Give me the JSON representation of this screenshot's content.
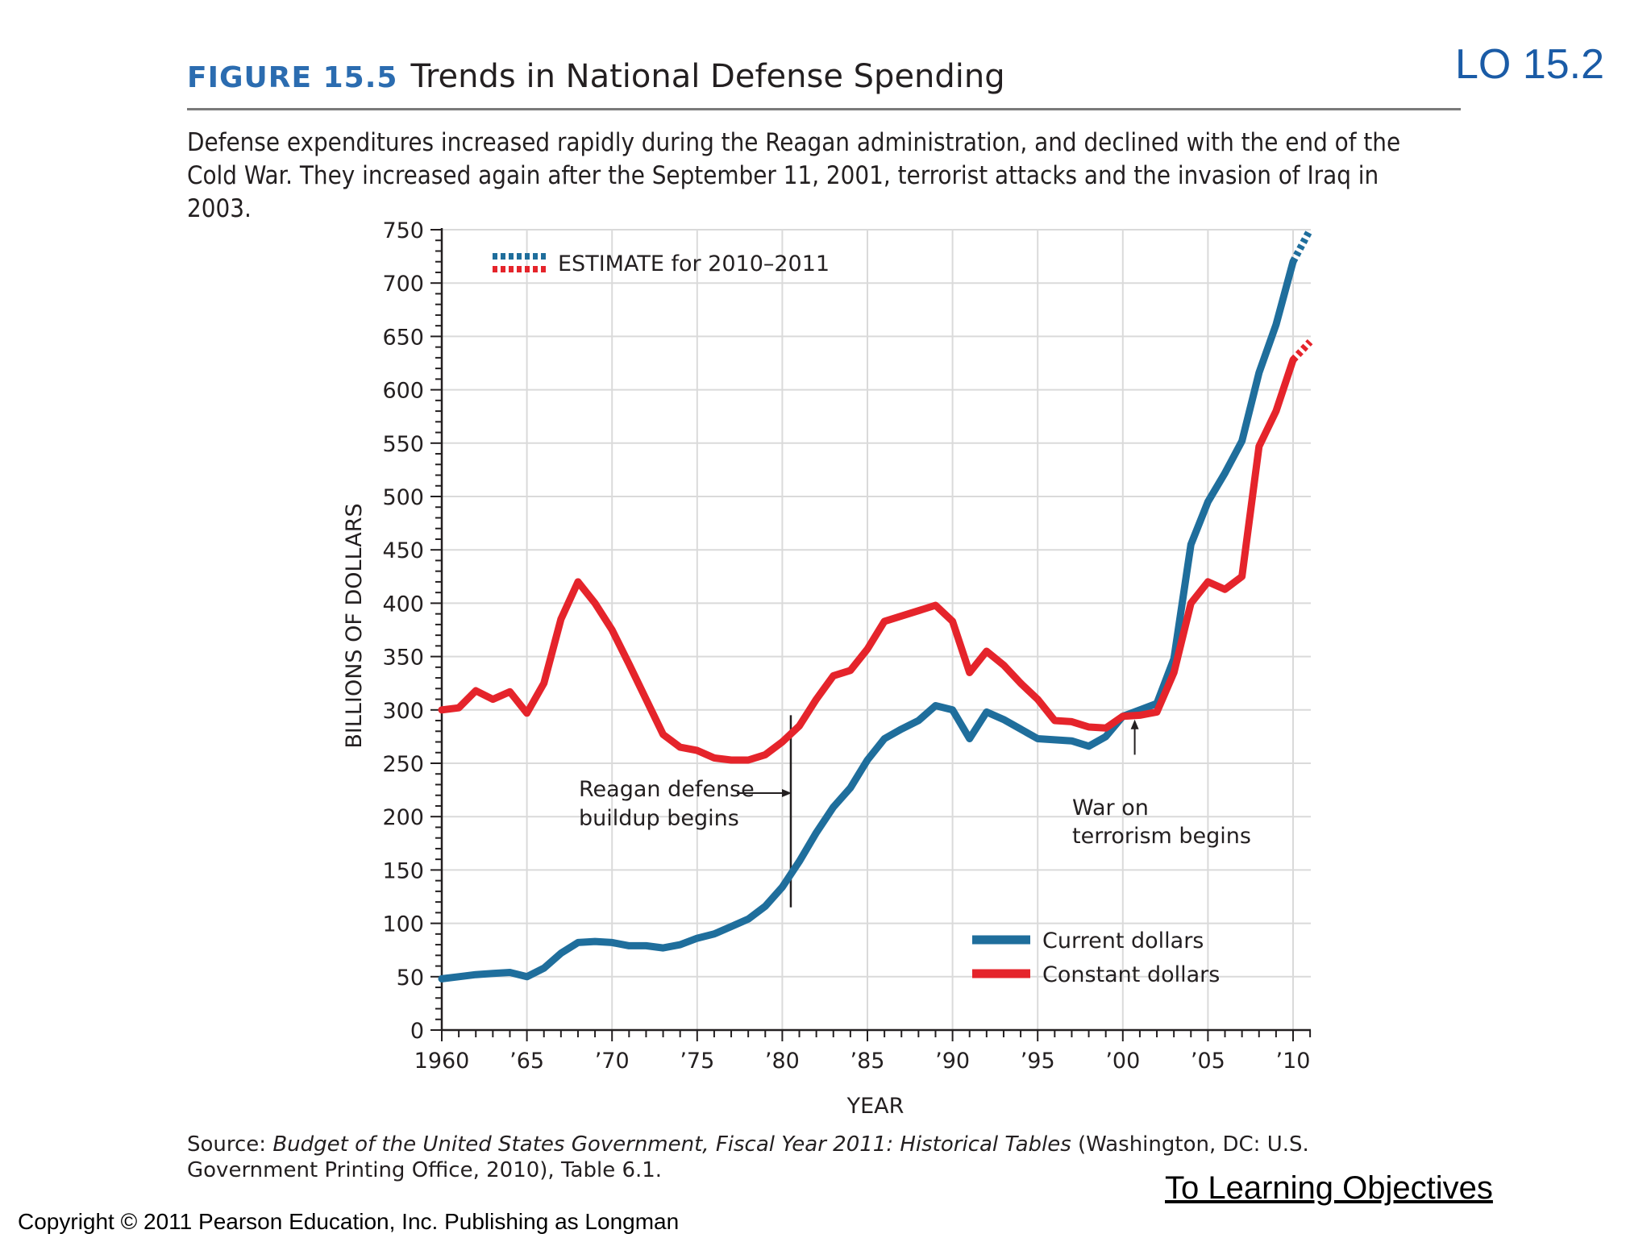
{
  "lo_tag": "LO 15.2",
  "figure": {
    "label": "FIGURE 15.5",
    "title": "Trends in National Defense Spending",
    "caption": "Defense expenditures increased rapidly during the Reagan administration, and declined with the end of the Cold War. They increased again after the September 11, 2001, terrorist attacks and the invasion of Iraq in 2003."
  },
  "source": {
    "prefix": "Source: ",
    "title": "Budget of the United States Government, Fiscal Year 2011: Historical Tables",
    "rest": " (Washington, DC: U.S. Government Printing Office, 2010), Table 6.1."
  },
  "link_label": "To Learning Objectives",
  "copyright": "Copyright © 2011 Pearson Education, Inc. Publishing as Longman",
  "colors": {
    "current": "#1f6e9c",
    "constant": "#e5242b",
    "accent_blue": "#2b6cb0",
    "lo_blue": "#1a5ba6"
  },
  "chart_data": {
    "type": "line",
    "title": "Trends in National Defense Spending",
    "xlabel": "YEAR",
    "ylabel": "BILLIONS OF DOLLARS",
    "xlim": [
      1960,
      2011
    ],
    "ylim": [
      0,
      750
    ],
    "y_ticks": [
      0,
      50,
      100,
      150,
      200,
      250,
      300,
      350,
      400,
      450,
      500,
      550,
      600,
      650,
      700,
      750
    ],
    "x_ticks": [
      1960,
      1965,
      1970,
      1975,
      1980,
      1985,
      1990,
      1995,
      2000,
      2005,
      2010
    ],
    "x_tick_labels": [
      "1960",
      "’65",
      "’70",
      "’75",
      "’80",
      "’85",
      "’90",
      "’95",
      "’00",
      "’05",
      "’10"
    ],
    "grid": true,
    "estimate_note": "ESTIMATE for 2010–2011",
    "series": [
      {
        "name": "Current dollars",
        "key": "current",
        "x": [
          1960,
          1961,
          1962,
          1963,
          1964,
          1965,
          1966,
          1967,
          1968,
          1969,
          1970,
          1971,
          1972,
          1973,
          1974,
          1975,
          1976,
          1977,
          1978,
          1979,
          1980,
          1981,
          1982,
          1983,
          1984,
          1985,
          1986,
          1987,
          1988,
          1989,
          1990,
          1991,
          1992,
          1993,
          1994,
          1995,
          1996,
          1997,
          1998,
          1999,
          2000,
          2001,
          2002,
          2003,
          2004,
          2005,
          2006,
          2007,
          2008,
          2009,
          2010
        ],
        "values": [
          48,
          50,
          52,
          53,
          54,
          50,
          58,
          72,
          82,
          83,
          82,
          79,
          79,
          77,
          80,
          86,
          90,
          97,
          104,
          116,
          134,
          158,
          185,
          209,
          227,
          253,
          273,
          282,
          290,
          304,
          300,
          273,
          298,
          291,
          282,
          273,
          272,
          271,
          266,
          275,
          294,
          300,
          306,
          348,
          455,
          495,
          522,
          552,
          616,
          661,
          720
        ],
        "estimate_x": [
          2010,
          2011
        ],
        "estimate_values": [
          720,
          750
        ]
      },
      {
        "name": "Constant dollars",
        "key": "constant",
        "x": [
          1960,
          1961,
          1962,
          1963,
          1964,
          1965,
          1966,
          1967,
          1968,
          1969,
          1970,
          1971,
          1972,
          1973,
          1974,
          1975,
          1976,
          1977,
          1978,
          1979,
          1980,
          1981,
          1982,
          1983,
          1984,
          1985,
          1986,
          1987,
          1988,
          1989,
          1990,
          1991,
          1992,
          1993,
          1994,
          1995,
          1996,
          1997,
          1998,
          1999,
          2000,
          2001,
          2002,
          2003,
          2004,
          2005,
          2006,
          2007,
          2008,
          2009,
          2010
        ],
        "values": [
          300,
          302,
          318,
          310,
          317,
          297,
          325,
          385,
          420,
          400,
          375,
          343,
          310,
          277,
          265,
          262,
          255,
          253,
          253,
          258,
          270,
          285,
          310,
          332,
          337,
          357,
          383,
          388,
          393,
          398,
          383,
          335,
          355,
          342,
          325,
          310,
          290,
          289,
          284,
          283,
          294,
          295,
          298,
          335,
          400,
          420,
          413,
          425,
          547,
          580,
          628
        ],
        "estimate_x": [
          2010,
          2011
        ],
        "estimate_values": [
          628,
          645
        ]
      }
    ],
    "annotations": [
      {
        "text_lines": [
          "Reagan defense",
          "buildup begins"
        ],
        "x": 1980.5,
        "y_from": 115,
        "y_to": 295
      },
      {
        "text_lines": [
          "War on",
          "terrorism begins"
        ],
        "x": 2000.7,
        "y_from": 258,
        "y_to": 288
      }
    ],
    "legend": {
      "position": "lower-right",
      "entries": [
        "Current dollars",
        "Constant dollars"
      ]
    }
  }
}
